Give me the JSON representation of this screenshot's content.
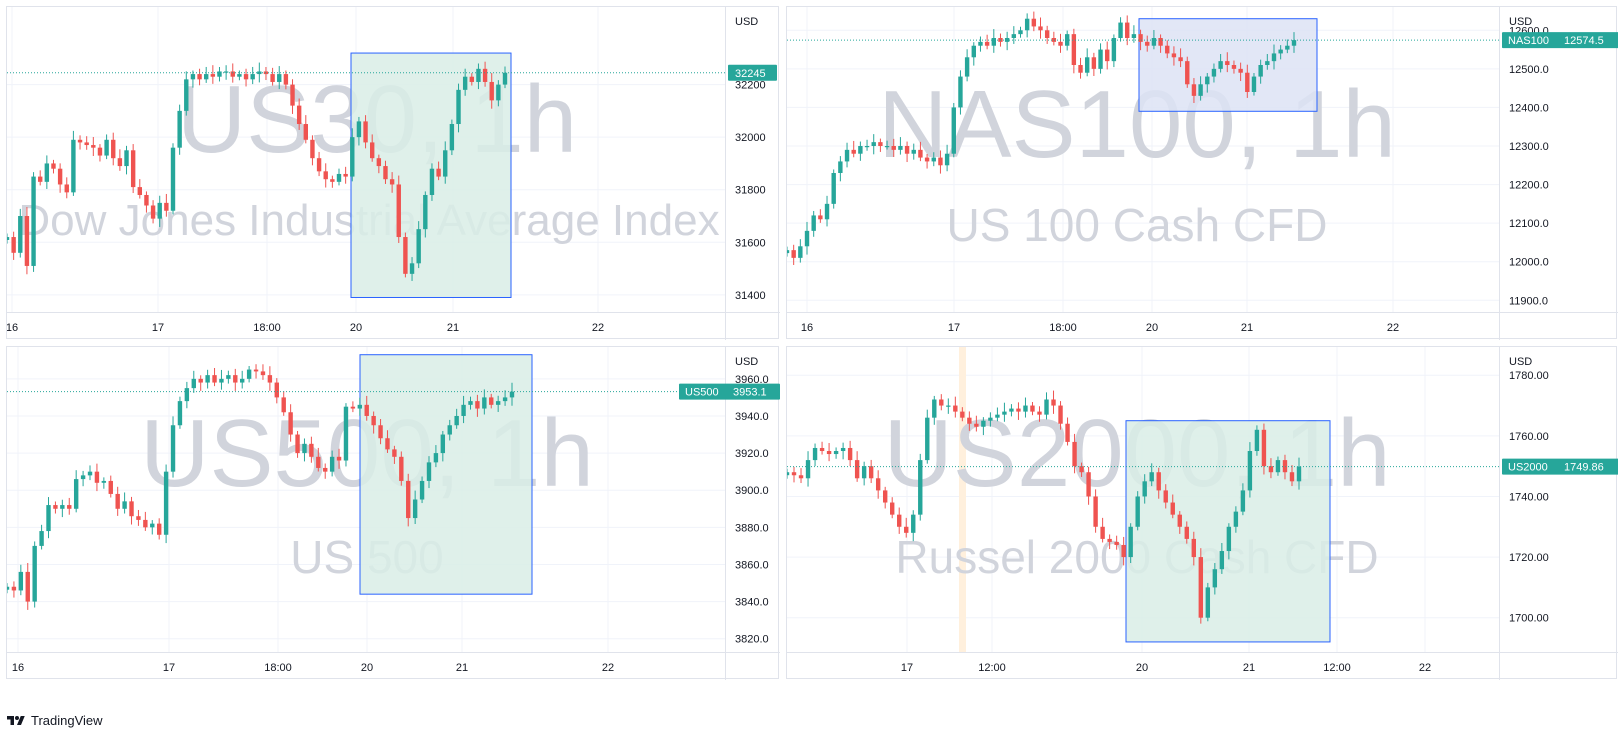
{
  "footer": {
    "brand_label": "TradingView",
    "logo_icon": "tradingview-logo-icon"
  },
  "colors": {
    "up": "#26a69a",
    "down": "#ef5350",
    "box_border": "#2962ff",
    "box_fill_green": "#d9ede6",
    "box_fill_blue": "#dde3f4",
    "watermark": "#d1d4dc",
    "grid": "#f0f3fa",
    "price_line": "#26a69a",
    "session_bg": "#fff0dd"
  },
  "chart_data": [
    {
      "type": "candlestick",
      "symbol": "US30",
      "watermark_title": "US30, 1h",
      "watermark_subtitle": "Dow Jones Industrial Average Index",
      "currency": "USD",
      "y_ticks": [
        31400,
        31600,
        31800,
        32000,
        32200
      ],
      "ylim": [
        31350,
        32480
      ],
      "x_ticks": [
        "16",
        "17",
        "18:00",
        "20",
        "21",
        "22"
      ],
      "price_label": "32245",
      "price_symbol": "",
      "last_price": 32245,
      "highlight_range": {
        "from": "20",
        "to": "21 (late)",
        "low": 31390,
        "high": 32320
      },
      "highlight_color": "green",
      "session_marker": false,
      "closes": [
        31620,
        31560,
        31700,
        31510,
        31850,
        31830,
        31900,
        31880,
        31820,
        31790,
        31990,
        31980,
        31970,
        31960,
        31930,
        31990,
        31920,
        31890,
        31950,
        31810,
        31780,
        31740,
        31690,
        31750,
        31720,
        31960,
        32100,
        32220,
        32240,
        32220,
        32240,
        32230,
        32250,
        32250,
        32230,
        32240,
        32220,
        32240,
        32250,
        32240,
        32210,
        32240,
        32200,
        32120,
        32050,
        31990,
        31920,
        31870,
        31840,
        31830,
        31860,
        31850,
        32000,
        32060,
        31980,
        31920,
        31890,
        31840,
        31820,
        31620,
        31480,
        31520,
        31650,
        31780,
        31880,
        31850,
        31950,
        32050,
        32180,
        32230,
        32210,
        32260,
        32210,
        32140,
        32200,
        32245
      ]
    },
    {
      "type": "candlestick",
      "symbol": "NAS100",
      "watermark_title": "NAS100, 1h",
      "watermark_subtitle": "US 100 Cash CFD",
      "currency": "USD",
      "y_ticks": [
        11900.0,
        12000.0,
        12100.0,
        12200.0,
        12300.0,
        12400.0,
        12500.0,
        12600.0
      ],
      "ylim": [
        11880,
        12650
      ],
      "x_ticks": [
        "16",
        "17",
        "18:00",
        "20",
        "21",
        "22"
      ],
      "price_label": "12574.5",
      "price_symbol": "NAS100",
      "last_price": 12574.5,
      "highlight_range": {
        "from": "20 (early)",
        "to": "21 (late)",
        "low": 12390,
        "high": 12630
      },
      "highlight_color": "blue",
      "session_marker": false,
      "closes": [
        12030,
        12010,
        12040,
        12080,
        12120,
        12110,
        12150,
        12230,
        12260,
        12290,
        12280,
        12300,
        12300,
        12310,
        12300,
        12300,
        12290,
        12300,
        12280,
        12290,
        12270,
        12260,
        12270,
        12250,
        12280,
        12400,
        12480,
        12530,
        12560,
        12570,
        12560,
        12580,
        12570,
        12580,
        12590,
        12600,
        12630,
        12610,
        12600,
        12580,
        12570,
        12560,
        12590,
        12510,
        12490,
        12530,
        12500,
        12550,
        12520,
        12580,
        12620,
        12580,
        12590,
        12570,
        12560,
        12580,
        12560,
        12540,
        12530,
        12520,
        12460,
        12430,
        12460,
        12480,
        12500,
        12520,
        12510,
        12500,
        12490,
        12440,
        12480,
        12510,
        12520,
        12540,
        12550,
        12560,
        12574.5
      ]
    },
    {
      "type": "candlestick",
      "symbol": "US500",
      "watermark_title": "US500, 1h",
      "watermark_subtitle": "US 500",
      "currency": "USD",
      "y_ticks": [
        3820.0,
        3840.0,
        3860.0,
        3880.0,
        3900.0,
        3920.0,
        3940.0,
        3960.0
      ],
      "ylim": [
        3815,
        3975
      ],
      "x_ticks": [
        "16",
        "17",
        "18:00",
        "20",
        "21",
        "22"
      ],
      "price_label": "3953.1",
      "price_symbol": "US500",
      "last_price": 3953.1,
      "highlight_range": {
        "from": "20 (early)",
        "to": "21 (late)",
        "low": 3844,
        "high": 3973
      },
      "highlight_color": "green",
      "session_marker": false,
      "closes": [
        3848,
        3846,
        3856,
        3840,
        3870,
        3878,
        3892,
        3890,
        3892,
        3890,
        3906,
        3908,
        3910,
        3904,
        3905,
        3898,
        3890,
        3894,
        3886,
        3884,
        3880,
        3882,
        3876,
        3910,
        3935,
        3948,
        3955,
        3960,
        3958,
        3962,
        3958,
        3960,
        3962,
        3958,
        3960,
        3965,
        3964,
        3962,
        3958,
        3950,
        3942,
        3930,
        3920,
        3925,
        3918,
        3912,
        3910,
        3918,
        3916,
        3945,
        3944,
        3946,
        3940,
        3935,
        3928,
        3922,
        3918,
        3905,
        3885,
        3895,
        3905,
        3915,
        3920,
        3930,
        3935,
        3940,
        3946,
        3948,
        3944,
        3950,
        3946,
        3948,
        3950,
        3953.1
      ]
    },
    {
      "type": "candlestick",
      "symbol": "US2000",
      "watermark_title": "US2000, 1h",
      "watermark_subtitle": "Russel 2000 Cash CFD",
      "currency": "USD",
      "y_ticks": [
        1700.0,
        1720.0,
        1740.0,
        1760.0,
        1780.0
      ],
      "ylim": [
        1690,
        1788
      ],
      "x_ticks": [
        "17",
        "12:00",
        "20",
        "21",
        "12:00",
        "22"
      ],
      "price_label": "1749.86",
      "price_symbol": "US2000",
      "last_price": 1749.86,
      "highlight_range": {
        "from": "20 (early)",
        "to": "21 (late)",
        "low": 1692,
        "high": 1765
      },
      "highlight_color": "green",
      "session_marker": true,
      "closes": [
        1748,
        1747,
        1746,
        1752,
        1756,
        1755,
        1754,
        1755,
        1756,
        1752,
        1746,
        1750,
        1746,
        1742,
        1738,
        1734,
        1730,
        1728,
        1734,
        1752,
        1766,
        1772,
        1770,
        1770,
        1768,
        1766,
        1764,
        1763,
        1765,
        1766,
        1767,
        1768,
        1769,
        1768,
        1770,
        1768,
        1767,
        1772,
        1770,
        1764,
        1758,
        1750,
        1748,
        1740,
        1730,
        1726,
        1725,
        1724,
        1720,
        1730,
        1740,
        1745,
        1748,
        1742,
        1738,
        1734,
        1730,
        1726,
        1720,
        1700,
        1710,
        1716,
        1722,
        1730,
        1735,
        1742,
        1755,
        1762,
        1750,
        1748,
        1752,
        1748,
        1745,
        1749.86
      ]
    }
  ]
}
